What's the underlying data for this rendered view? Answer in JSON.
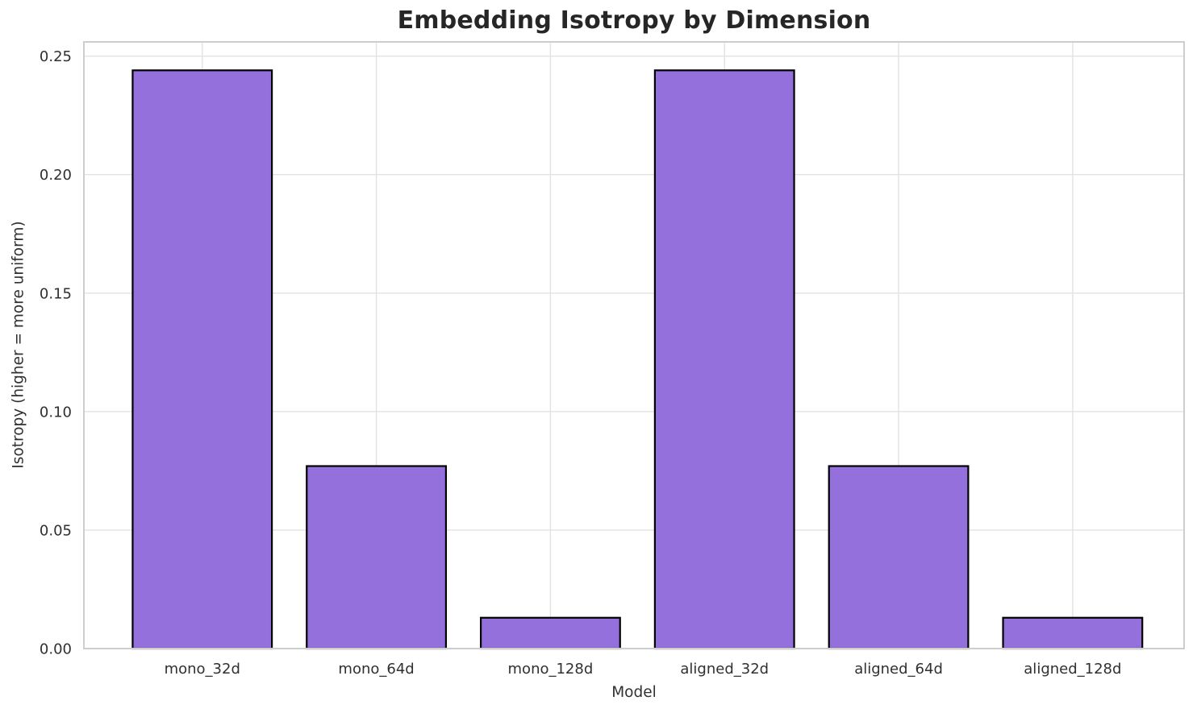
{
  "chart_data": {
    "type": "bar",
    "title": "Embedding Isotropy by Dimension",
    "xlabel": "Model",
    "ylabel": "Isotropy (higher = more uniform)",
    "categories": [
      "mono_32d",
      "mono_64d",
      "mono_128d",
      "aligned_32d",
      "aligned_64d",
      "aligned_128d"
    ],
    "values": [
      0.244,
      0.077,
      0.013,
      0.244,
      0.077,
      0.013
    ],
    "ytick_labels": [
      "0.00",
      "0.05",
      "0.10",
      "0.15",
      "0.20",
      "0.25"
    ],
    "ytick_values": [
      0,
      0.05,
      0.1,
      0.15,
      0.2,
      0.25
    ],
    "ylim": [
      0,
      0.256
    ],
    "grid": true,
    "legend_position": "none",
    "colors": {
      "bar_fill": "#9370DB",
      "bar_edge": "#000000",
      "grid_line": "#e2e2e2",
      "spine": "#cdcdcd",
      "title_text": "#262626",
      "tick_text": "#303030"
    }
  }
}
